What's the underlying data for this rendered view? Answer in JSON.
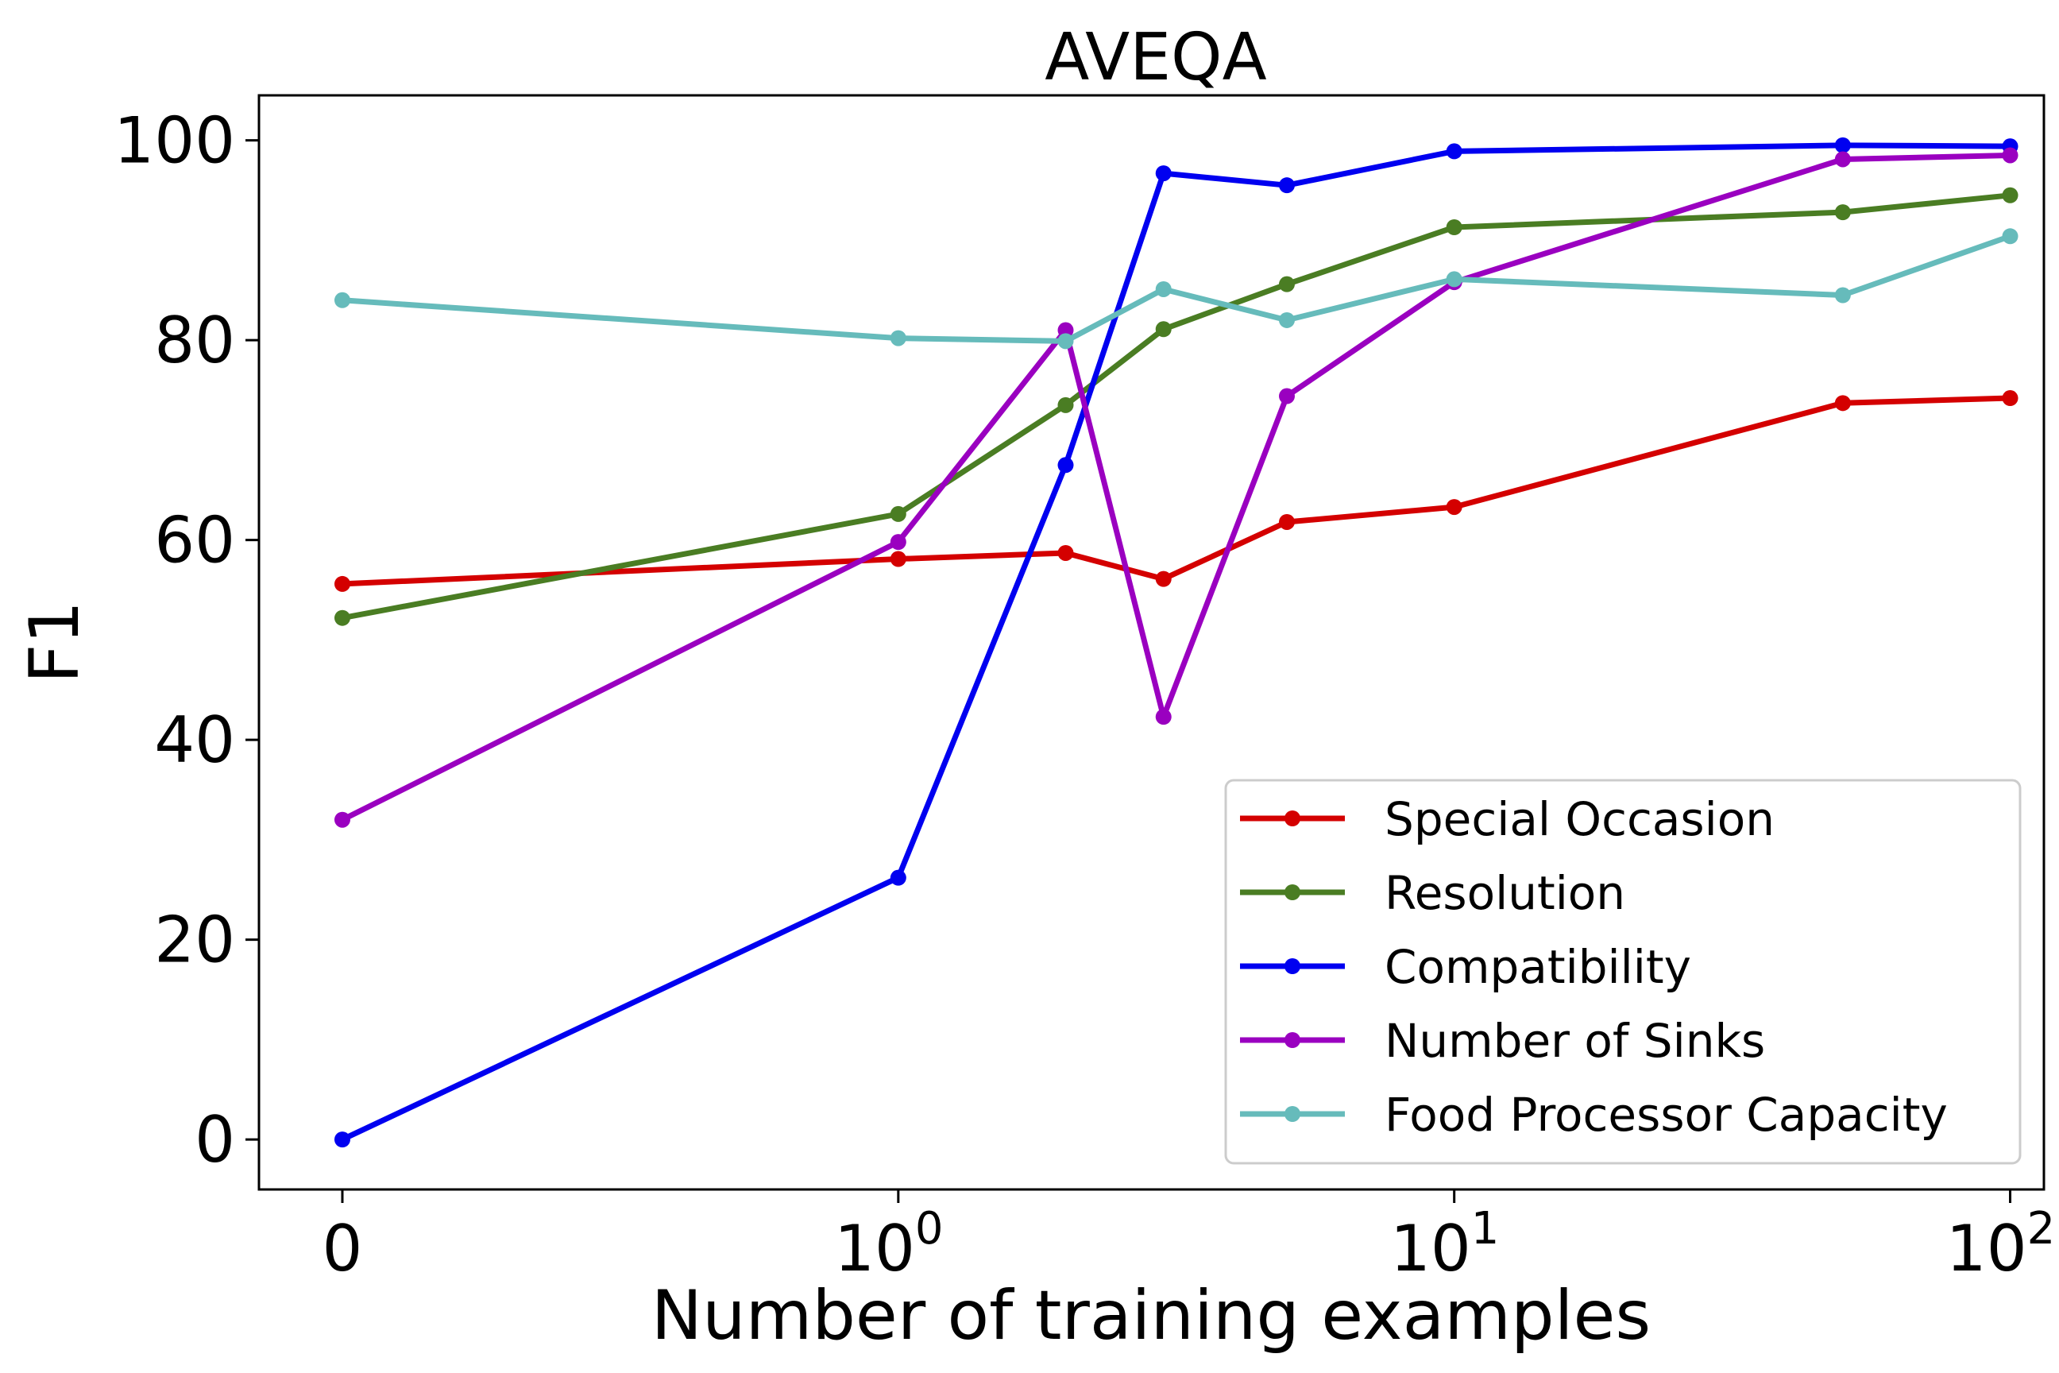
{
  "chart_data": {
    "type": "line",
    "title": "AVEQA",
    "xlabel": "Number of training examples",
    "ylabel": "F1",
    "x_scale": "symlog",
    "x": [
      0,
      1,
      2,
      3,
      5,
      10,
      50,
      100
    ],
    "xlim": [
      -0.15,
      115
    ],
    "ylim": [
      -5,
      104.5
    ],
    "x_ticks": [
      {
        "value": 0,
        "base": "0",
        "exp": ""
      },
      {
        "value": 1,
        "base": "10",
        "exp": "0"
      },
      {
        "value": 10,
        "base": "10",
        "exp": "1"
      },
      {
        "value": 100,
        "base": "10",
        "exp": "2"
      }
    ],
    "y_ticks": [
      0,
      20,
      40,
      60,
      80,
      100
    ],
    "grid": false,
    "legend_position": "lower-right",
    "series": [
      {
        "name": "Special Occasion",
        "color": "#d40000",
        "values": [
          55.6,
          58.1,
          58.7,
          56.1,
          61.8,
          63.3,
          73.7,
          74.2
        ]
      },
      {
        "name": "Resolution",
        "color": "#4a7d23",
        "values": [
          52.2,
          62.6,
          73.5,
          81.1,
          85.6,
          91.3,
          92.8,
          94.5
        ]
      },
      {
        "name": "Compatibility",
        "color": "#0000f0",
        "values": [
          0.0,
          26.2,
          67.5,
          96.7,
          95.5,
          98.9,
          99.5,
          99.4
        ]
      },
      {
        "name": "Number of Sinks",
        "color": "#9a00c0",
        "values": [
          32.0,
          59.8,
          81.0,
          42.3,
          74.4,
          85.8,
          98.1,
          98.5
        ]
      },
      {
        "name": "Food Processor Capacity",
        "color": "#66bbbb",
        "values": [
          84.0,
          80.2,
          79.9,
          85.1,
          82.0,
          86.1,
          84.5,
          90.4
        ]
      }
    ]
  }
}
